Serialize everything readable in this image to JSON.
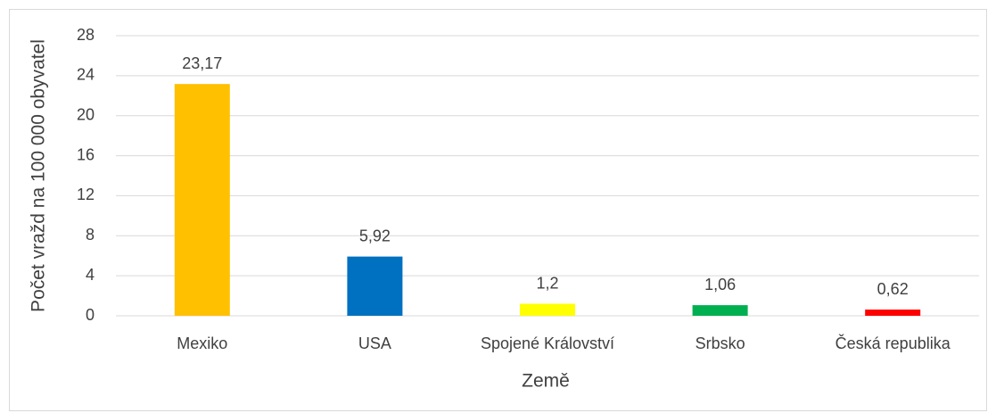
{
  "chart_data": {
    "type": "bar",
    "y_label": "Počet vražd na 100 000 obyvatel",
    "x_label": "Země",
    "categories": [
      "Mexiko",
      "USA",
      "Spojené Království",
      "Srbsko",
      "Česká republika"
    ],
    "values": [
      23.17,
      5.92,
      1.2,
      1.06,
      0.62
    ],
    "value_labels": [
      "23,17",
      "5,92",
      "1,2",
      "1,06",
      "0,62"
    ],
    "colors": [
      "#FFC000",
      "#0070C0",
      "#FFFF00",
      "#00B050",
      "#FF0000"
    ],
    "ylim": [
      0,
      28
    ],
    "yticks": [
      0,
      4,
      8,
      12,
      16,
      20,
      24,
      28
    ],
    "grid": true
  }
}
